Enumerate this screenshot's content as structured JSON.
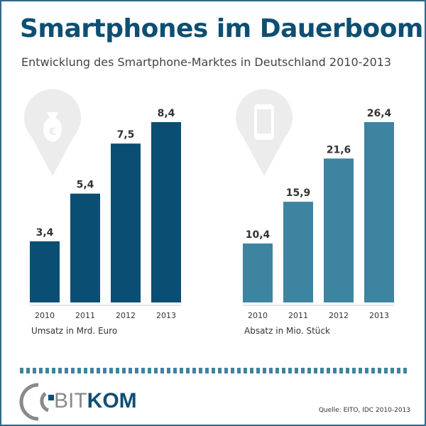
{
  "title": "Smartphones im Dauerboom",
  "subtitle": "Entwicklung des Smartphone-Marktes in Deutschland 2010-2013",
  "source": "Quelle: EITO, IDC 2010-2013",
  "logo_text": "BITKOM",
  "chart_data": [
    {
      "type": "bar",
      "categories": [
        "2010",
        "2011",
        "2012",
        "2013"
      ],
      "values": [
        3.4,
        5.4,
        7.5,
        8.4
      ],
      "labels": [
        "3,4",
        "5,4",
        "7,5",
        "8,4"
      ],
      "xlabel": "Umsatz in Mrd. Euro",
      "icon": "money-bag-euro-icon",
      "color": "#0a4f73"
    },
    {
      "type": "bar",
      "categories": [
        "2010",
        "2011",
        "2012",
        "2013"
      ],
      "values": [
        10.4,
        15.9,
        21.6,
        26.4
      ],
      "labels": [
        "10,4",
        "15,9",
        "21,6",
        "26,4"
      ],
      "xlabel": "Absatz in Mio. Stück",
      "icon": "smartphone-icon",
      "color": "#3d84a0"
    }
  ]
}
